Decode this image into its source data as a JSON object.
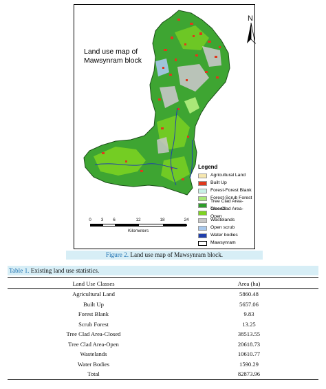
{
  "map": {
    "title_line1": "Land use map of",
    "title_line2": "Mawsynram block",
    "north_label": "N",
    "legend_title": "Legend",
    "legend_items": [
      {
        "label": "Agricultural Land",
        "color": "#f6e7b0"
      },
      {
        "label": "Built Up",
        "color": "#e0381c"
      },
      {
        "label": "Forest-Forest Blank",
        "color": "#c9f2e6"
      },
      {
        "label": "Forest-Scrub Forest",
        "color": "#a9e878"
      },
      {
        "label": "Tree Clad Area-Closed",
        "color": "#2e9e2a"
      },
      {
        "label": "Tree Clad Area-Open",
        "color": "#7ed321"
      },
      {
        "label": "Wastelands",
        "color": "#c7c7c7"
      },
      {
        "label": "Open scrub",
        "color": "#a8c8ec"
      },
      {
        "label": "Water bodies",
        "color": "#1f3fae"
      },
      {
        "label": "Mawsynram",
        "color": "#ffffff",
        "boundary": true
      }
    ],
    "scale_ticks": [
      "0",
      "3",
      "6",
      "12",
      "18",
      "24"
    ],
    "scale_unit": "Kilometers"
  },
  "figure_caption": {
    "number": "Figure 2.",
    "text": " Land use map of Mawsynram block."
  },
  "table_caption": {
    "number": "Table 1.",
    "text": " Existing land use statistics."
  },
  "table": {
    "headers": [
      "Land Use Classes",
      "Area (ha)"
    ],
    "rows": [
      [
        "Agricultural Land",
        "5860.48"
      ],
      [
        "Built Up",
        "5657.06"
      ],
      [
        "Forest Blank",
        "9.83"
      ],
      [
        "Scrub Forest",
        "13.25"
      ],
      [
        "Tree Clad Area-Closed",
        "38513.55"
      ],
      [
        "Tree Clad Area-Open",
        "20618.73"
      ],
      [
        "Wastelands",
        "10610.77"
      ],
      [
        "Water Bodies",
        "1590.29"
      ],
      [
        "Total",
        "82873.96"
      ]
    ]
  }
}
